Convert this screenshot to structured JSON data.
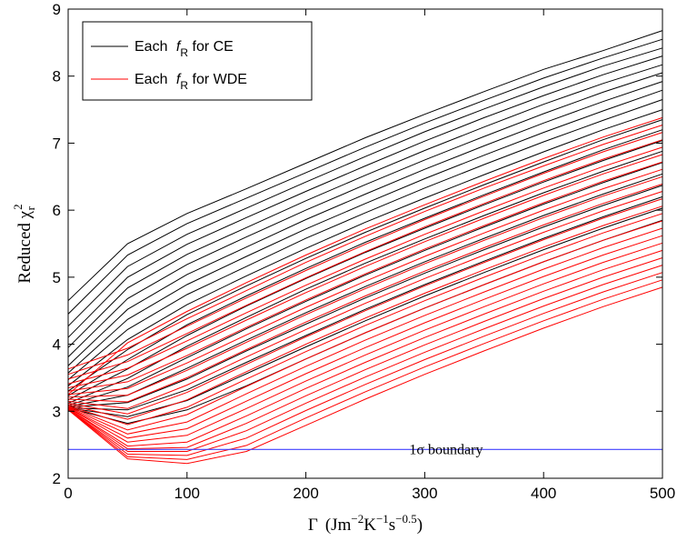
{
  "chart_data": {
    "type": "line",
    "xlabel": {
      "base": "Γ",
      "unit_open": "(Jm",
      "exp1": "−2",
      "unit_mid": "K",
      "exp2": "−1",
      "unit_s": "s",
      "exp3": "−0.5",
      "unit_close": ")"
    },
    "ylabel": {
      "base": "Reduced χ",
      "superscript": "2",
      "subscript": "r"
    },
    "xlim": [
      0,
      500
    ],
    "ylim": [
      2,
      9
    ],
    "xticks": [
      0,
      100,
      200,
      300,
      400,
      500
    ],
    "yticks": [
      2,
      3,
      4,
      5,
      6,
      7,
      8,
      9
    ],
    "grid": false,
    "legend": {
      "placement": "top-left",
      "entries": [
        {
          "prefix": "Each ",
          "symbol": "f",
          "subscript": "R",
          "suffix": " for CE",
          "color": "#000000"
        },
        {
          "prefix": "Each ",
          "symbol": "f",
          "subscript": "R",
          "suffix": " for WDE",
          "color": "#ff0000"
        }
      ]
    },
    "x": [
      0,
      50,
      100,
      150,
      200,
      250,
      300,
      350,
      400,
      450,
      500
    ],
    "series_groups": [
      {
        "label": "Each fR for CE",
        "color": "#000000",
        "series": [
          {
            "values": [
              4.65,
              5.5,
              5.95,
              6.32,
              6.7,
              7.08,
              7.43,
              7.77,
              8.1,
              8.38,
              8.68
            ]
          },
          {
            "values": [
              4.45,
              5.33,
              5.8,
              6.18,
              6.56,
              6.94,
              7.3,
              7.64,
              7.97,
              8.27,
              8.55
            ]
          },
          {
            "values": [
              4.27,
              5.16,
              5.64,
              6.03,
              6.42,
              6.8,
              7.17,
              7.51,
              7.84,
              8.15,
              8.42
            ]
          },
          {
            "values": [
              4.1,
              5.0,
              5.49,
              5.89,
              6.28,
              6.66,
              7.03,
              7.38,
              7.71,
              8.02,
              8.3
            ]
          },
          {
            "values": [
              3.95,
              4.84,
              5.34,
              5.74,
              6.14,
              6.52,
              6.89,
              7.24,
              7.58,
              7.89,
              8.17
            ]
          },
          {
            "values": [
              3.81,
              4.68,
              5.19,
              5.6,
              6.0,
              6.38,
              6.75,
              7.1,
              7.44,
              7.76,
              8.05
            ]
          },
          {
            "values": [
              3.68,
              4.52,
              5.04,
              5.45,
              5.86,
              6.24,
              6.61,
              6.96,
              7.3,
              7.62,
              7.92
            ]
          },
          {
            "values": [
              3.57,
              4.37,
              4.89,
              5.31,
              5.72,
              6.1,
              6.47,
              6.82,
              7.16,
              7.48,
              7.79
            ]
          },
          {
            "values": [
              3.47,
              4.22,
              4.74,
              5.16,
              5.58,
              5.96,
              6.33,
              6.68,
              7.02,
              7.34,
              7.65
            ]
          },
          {
            "values": [
              3.38,
              4.07,
              4.59,
              5.02,
              5.43,
              5.82,
              6.18,
              6.53,
              6.87,
              7.2,
              7.5
            ]
          },
          {
            "values": [
              3.3,
              3.92,
              4.44,
              4.87,
              5.28,
              5.67,
              6.03,
              6.38,
              6.72,
              7.05,
              7.35
            ]
          },
          {
            "values": [
              3.23,
              3.77,
              4.29,
              4.72,
              5.13,
              5.52,
              5.88,
              6.23,
              6.57,
              6.9,
              7.2
            ]
          },
          {
            "values": [
              3.17,
              3.63,
              4.13,
              4.57,
              4.98,
              5.37,
              5.73,
              6.08,
              6.42,
              6.74,
              7.04
            ]
          },
          {
            "values": [
              3.12,
              3.49,
              3.97,
              4.4,
              4.82,
              5.21,
              5.57,
              5.92,
              6.26,
              6.58,
              6.88
            ]
          },
          {
            "values": [
              3.09,
              3.36,
              3.8,
              4.23,
              4.64,
              5.03,
              5.4,
              5.75,
              6.09,
              6.41,
              6.71
            ]
          },
          {
            "values": [
              3.07,
              3.24,
              3.64,
              4.06,
              4.47,
              4.86,
              5.23,
              5.58,
              5.92,
              6.24,
              6.54
            ]
          },
          {
            "values": [
              3.06,
              3.13,
              3.48,
              3.9,
              4.3,
              4.69,
              5.06,
              5.41,
              5.75,
              6.07,
              6.37
            ]
          },
          {
            "values": [
              3.05,
              3.02,
              3.32,
              3.73,
              4.13,
              4.52,
              4.89,
              5.24,
              5.58,
              5.9,
              6.2
            ]
          },
          {
            "values": [
              3.05,
              2.92,
              3.16,
              3.56,
              3.96,
              4.35,
              4.72,
              5.07,
              5.41,
              5.73,
              6.03
            ]
          },
          {
            "values": [
              3.05,
              2.82,
              3.02,
              3.38,
              3.78,
              4.17,
              4.54,
              4.89,
              5.23,
              5.55,
              5.85
            ]
          }
        ]
      },
      {
        "label": "Each fR for WDE",
        "color": "#ff0000",
        "series": [
          {
            "values": [
              3.25,
              4.02,
              4.49,
              4.92,
              5.33,
              5.72,
              6.08,
              6.43,
              6.77,
              7.09,
              7.38
            ]
          },
          {
            "values": [
              3.63,
              3.94,
              4.38,
              4.8,
              5.22,
              5.61,
              5.98,
              6.33,
              6.66,
              6.98,
              7.27
            ]
          },
          {
            "values": [
              3.55,
              3.84,
              4.27,
              4.69,
              5.1,
              5.49,
              5.86,
              6.21,
              6.55,
              6.87,
              7.16
            ]
          },
          {
            "values": [
              3.48,
              3.74,
              4.16,
              4.58,
              4.99,
              5.38,
              5.75,
              6.1,
              6.44,
              6.76,
              7.05
            ]
          },
          {
            "values": [
              3.41,
              3.64,
              4.05,
              4.47,
              4.88,
              5.27,
              5.64,
              5.99,
              6.33,
              6.65,
              6.94
            ]
          },
          {
            "values": [
              3.35,
              3.54,
              3.94,
              4.36,
              4.77,
              5.16,
              5.53,
              5.88,
              6.22,
              6.54,
              6.83
            ]
          },
          {
            "values": [
              3.3,
              3.44,
              3.83,
              4.25,
              4.66,
              5.05,
              5.42,
              5.77,
              6.11,
              6.43,
              6.72
            ]
          },
          {
            "values": [
              3.25,
              3.34,
              3.72,
              4.14,
              4.55,
              4.94,
              5.31,
              5.66,
              6.0,
              6.32,
              6.61
            ]
          },
          {
            "values": [
              3.21,
              3.24,
              3.61,
              4.03,
              4.44,
              4.83,
              5.2,
              5.55,
              5.89,
              6.21,
              6.5
            ]
          },
          {
            "values": [
              3.18,
              3.14,
              3.5,
              3.92,
              4.33,
              4.72,
              5.09,
              5.44,
              5.78,
              6.1,
              6.39
            ]
          },
          {
            "values": [
              3.15,
              3.04,
              3.39,
              3.81,
              4.22,
              4.61,
              4.98,
              5.33,
              5.67,
              5.99,
              6.28
            ]
          },
          {
            "values": [
              3.12,
              2.96,
              3.28,
              3.7,
              4.11,
              4.5,
              4.87,
              5.22,
              5.56,
              5.88,
              6.17
            ]
          },
          {
            "values": [
              3.1,
              2.88,
              3.17,
              3.59,
              4.0,
              4.39,
              4.76,
              5.11,
              5.45,
              5.77,
              6.06
            ]
          },
          {
            "values": [
              3.08,
              2.8,
              3.06,
              3.48,
              3.89,
              4.28,
              4.65,
              5.0,
              5.34,
              5.66,
              5.95
            ]
          },
          {
            "values": [
              3.07,
              2.72,
              2.95,
              3.37,
              3.78,
              4.17,
              4.54,
              4.89,
              5.23,
              5.55,
              5.84
            ]
          },
          {
            "values": [
              3.06,
              2.66,
              2.84,
              3.26,
              3.67,
              4.06,
              4.43,
              4.78,
              5.12,
              5.44,
              5.73
            ]
          },
          {
            "values": [
              3.05,
              2.6,
              2.74,
              3.15,
              3.56,
              3.95,
              4.32,
              4.67,
              5.01,
              5.33,
              5.62
            ]
          },
          {
            "values": [
              3.05,
              2.54,
              2.64,
              3.04,
              3.45,
              3.84,
              4.21,
              4.56,
              4.9,
              5.22,
              5.51
            ]
          },
          {
            "values": [
              3.04,
              2.48,
              2.54,
              2.93,
              3.34,
              3.73,
              4.1,
              4.45,
              4.79,
              5.11,
              5.4
            ]
          },
          {
            "values": [
              3.04,
              2.44,
              2.46,
              2.82,
              3.23,
              3.62,
              3.99,
              4.34,
              4.68,
              5.0,
              5.29
            ]
          },
          {
            "values": [
              3.03,
              2.4,
              2.4,
              2.71,
              3.12,
              3.51,
              3.88,
              4.23,
              4.57,
              4.89,
              5.18
            ]
          },
          {
            "values": [
              3.03,
              2.36,
              2.34,
              2.6,
              3.01,
              3.4,
              3.77,
              4.12,
              4.46,
              4.78,
              5.07
            ]
          },
          {
            "values": [
              3.03,
              2.32,
              2.28,
              2.49,
              2.9,
              3.29,
              3.66,
              4.01,
              4.35,
              4.67,
              4.96
            ]
          },
          {
            "values": [
              3.02,
              2.29,
              2.22,
              2.4,
              2.79,
              3.18,
              3.55,
              3.9,
              4.24,
              4.56,
              4.85
            ]
          }
        ]
      }
    ],
    "reference_line": {
      "y": 2.43,
      "color": "#4040ff",
      "label": "1σ boundary",
      "label_at_x": 318
    }
  }
}
